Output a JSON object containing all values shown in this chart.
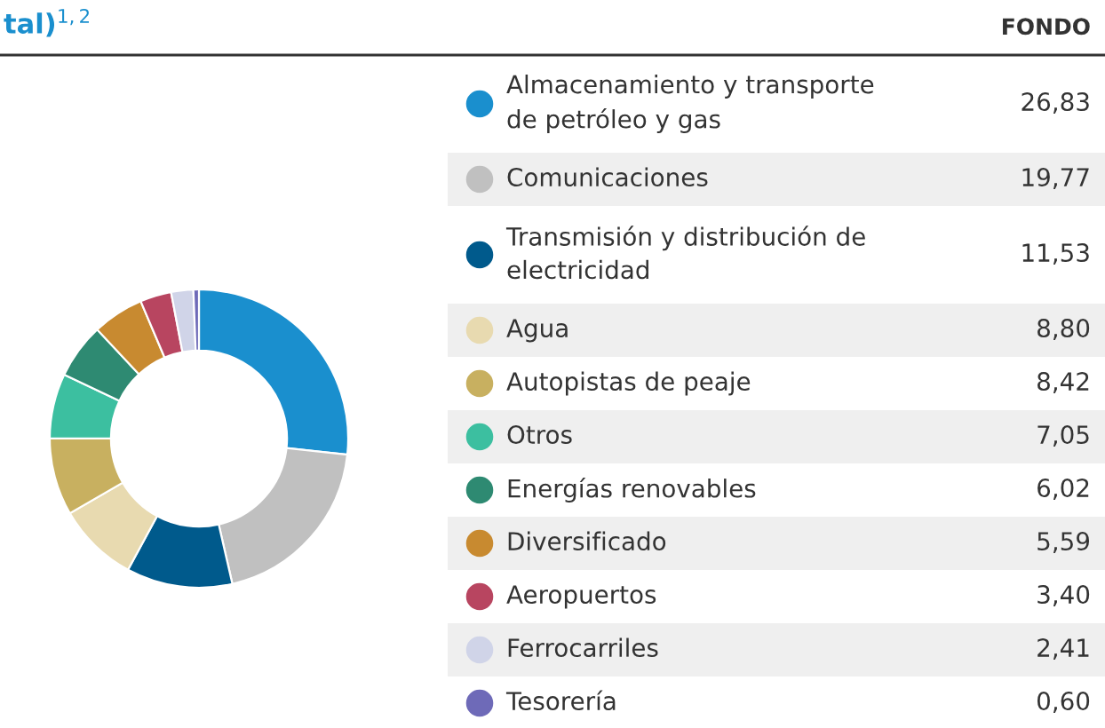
{
  "chart_data": {
    "type": "donut",
    "title": "tal)$^{1,2}$",
    "legend_title": "FONDO",
    "legend": "right",
    "categories": [
      "Almacenamiento y transporte\nde petróleo y gas",
      "Comunicaciones",
      "Transmisión y distribución de\nelectricidad",
      "Agua",
      "Autopistas de peaje",
      "Otros",
      "Energías renovables",
      "Diversificado",
      "Aeropuertos",
      "Ferrocarriles",
      "Tesorería"
    ],
    "values": [
      26.83,
      19.77,
      11.53,
      8.8,
      8.42,
      7.05,
      6.02,
      5.59,
      3.4,
      2.41,
      0.6
    ],
    "value_labels": [
      "26,83",
      "19,77",
      "11,53",
      "8,80",
      "8,42",
      "7,05",
      "6,02",
      "5,59",
      "3,40",
      "2,41",
      "0,60"
    ],
    "colors": [
      "#1a8fce",
      "#c0c0c0",
      "#005a8c",
      "#e8dab0",
      "#c8b060",
      "#3cbfa0",
      "#2e8a72",
      "#c88a30",
      "#b84560",
      "#d0d4e8",
      "#6e6ab8"
    ]
  }
}
